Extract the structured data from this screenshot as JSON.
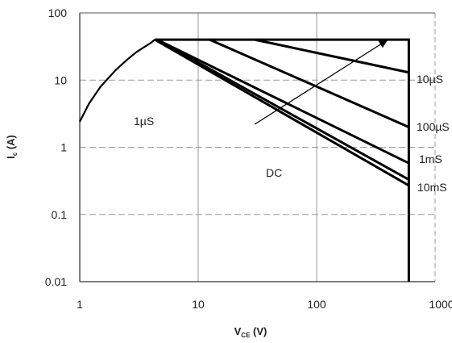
{
  "chart_data": {
    "type": "line",
    "x_scale": "log",
    "y_scale": "log",
    "xlim": [
      1,
      1000
    ],
    "ylim": [
      0.01,
      100
    ],
    "x_ticks": [
      1,
      10,
      100,
      1000
    ],
    "y_ticks": [
      0.01,
      0.1,
      1,
      10,
      100
    ],
    "x_tick_labels": [
      "1",
      "10",
      "100",
      "1000"
    ],
    "y_tick_labels": [
      "0.01",
      "0.1",
      "1",
      "10",
      "100"
    ],
    "xlabel": {
      "main": "V",
      "sub": "CE",
      "unit": " (V)"
    },
    "ylabel": {
      "main": "I",
      "sub": "c",
      "unit": " (A)"
    },
    "grid": true,
    "grid_style": "dashed",
    "limits": {
      "current_limit_A": 40,
      "voltage_limit_V": 600
    },
    "series": [
      {
        "name": "10µS",
        "x": [
          30,
          600
        ],
        "y": [
          40,
          13
        ]
      },
      {
        "name": "100µS",
        "x": [
          12.5,
          600
        ],
        "y": [
          40,
          2
        ]
      },
      {
        "name": "1mS",
        "x": [
          4.5,
          600
        ],
        "y": [
          40,
          0.58
        ]
      },
      {
        "name": "10mS",
        "x": [
          4.5,
          600
        ],
        "y": [
          40,
          0.33
        ]
      },
      {
        "name": "DC",
        "x": [
          4.3,
          600
        ],
        "y": [
          40,
          0.27
        ]
      }
    ],
    "thermal_boundary": {
      "x": [
        1,
        1.2,
        1.5,
        2,
        2.5,
        3,
        3.5,
        4,
        4.3
      ],
      "y": [
        2.4,
        4.5,
        8,
        14,
        20,
        26,
        31,
        36,
        40
      ]
    },
    "labels": {
      "curve_10us": "10µS",
      "curve_100us": "100µS",
      "curve_1ms": "1mS",
      "curve_10ms": "10mS",
      "curve_dc": "DC",
      "curve_1us": "1µS"
    },
    "annotations": [
      {
        "text": "1µS",
        "arrow_from": [
          30,
          2.2
        ],
        "arrow_to": [
          400,
          40
        ]
      }
    ]
  },
  "colors": {
    "line": "#000000",
    "grid": "#9a9a9a",
    "frame": "#555555",
    "text": "#222222"
  }
}
